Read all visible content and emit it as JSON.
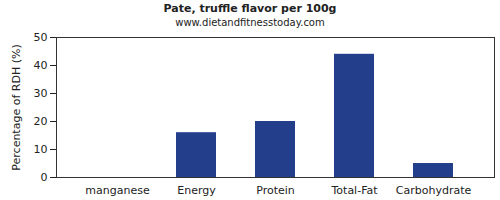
{
  "chart_data": {
    "type": "bar",
    "title": "Pate, truffle flavor per 100g",
    "subtitle": "www.dietandfitnesstoday.com",
    "y_label": "Percentage of RDH (%)",
    "categories": [
      "manganese",
      "Energy",
      "Protein",
      "Total-Fat",
      "Carbohydrate"
    ],
    "values": [
      0,
      16,
      20,
      44,
      5
    ],
    "color": "#233e8b",
    "ylim": [
      0,
      50
    ],
    "yticks": [
      0,
      10,
      20,
      30,
      40,
      50
    ],
    "grid": false
  }
}
